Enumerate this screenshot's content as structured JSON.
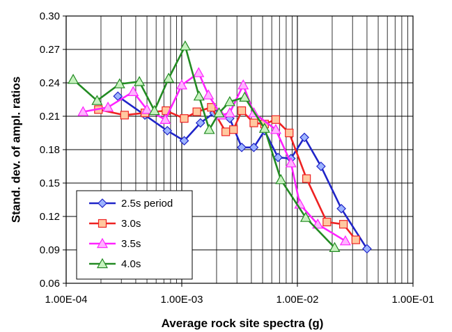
{
  "chart_data": {
    "type": "scatter",
    "title": "",
    "xlabel": "Average rock site spectra (g)",
    "ylabel": "Stand. dev. of ampl. ratios",
    "x_scale": "log",
    "xlim": [
      0.0001,
      0.1
    ],
    "ylim": [
      0.06,
      0.3
    ],
    "x_ticks": [
      0.0001,
      0.001,
      0.01,
      0.1
    ],
    "x_tick_labels": [
      "1.00E-04",
      "1.00E-03",
      "1.00E-02",
      "1.00E-01"
    ],
    "y_ticks": [
      0.06,
      0.09,
      0.12,
      0.15,
      0.18,
      0.21,
      0.24,
      0.27,
      0.3
    ],
    "y_tick_labels": [
      "0.06",
      "0.09",
      "0.12",
      "0.15",
      "0.18",
      "0.21",
      "0.24",
      "0.27",
      "0.30"
    ],
    "grid": true,
    "legend_position": "bottom-left",
    "series": [
      {
        "name": "2.5s period",
        "color": "#1f24c8",
        "marker": "diamond",
        "x": [
          0.00028,
          0.00048,
          0.00075,
          0.00105,
          0.00145,
          0.0019,
          0.0026,
          0.0033,
          0.0042,
          0.0052,
          0.0068,
          0.0088,
          0.0115,
          0.016,
          0.024,
          0.04
        ],
        "y": [
          0.228,
          0.211,
          0.197,
          0.188,
          0.204,
          0.213,
          0.208,
          0.182,
          0.182,
          0.197,
          0.173,
          0.172,
          0.191,
          0.165,
          0.127,
          0.091
        ]
      },
      {
        "name": "3.0s",
        "color": "#ee2222",
        "marker": "square",
        "x": [
          0.00019,
          0.00032,
          0.00048,
          0.00073,
          0.00105,
          0.00135,
          0.0018,
          0.0024,
          0.0028,
          0.0033,
          0.0042,
          0.0052,
          0.0065,
          0.0085,
          0.012,
          0.018,
          0.025,
          0.032
        ],
        "y": [
          0.216,
          0.211,
          0.213,
          0.215,
          0.208,
          0.214,
          0.218,
          0.196,
          0.198,
          0.215,
          0.204,
          0.203,
          0.207,
          0.195,
          0.154,
          0.115,
          0.113,
          0.099
        ]
      },
      {
        "name": "3.5s",
        "color": "#ff22ff",
        "marker": "triangle",
        "x": [
          0.00014,
          0.00023,
          0.00038,
          0.0005,
          0.00072,
          0.001,
          0.0014,
          0.0017,
          0.0022,
          0.0026,
          0.0034,
          0.0042,
          0.0065,
          0.0088,
          0.0105,
          0.015,
          0.026
        ],
        "y": [
          0.214,
          0.218,
          0.232,
          0.216,
          0.207,
          0.238,
          0.249,
          0.229,
          0.211,
          0.213,
          0.238,
          0.213,
          0.198,
          0.168,
          0.131,
          0.113,
          0.098
        ]
      },
      {
        "name": "4.0s",
        "color": "#228b22",
        "marker": "triangle",
        "x": [
          0.000115,
          0.000185,
          0.00029,
          0.00043,
          0.00058,
          0.00077,
          0.00107,
          0.00141,
          0.00173,
          0.0021,
          0.0026,
          0.0035,
          0.0052,
          0.0072,
          0.0118,
          0.021
        ],
        "y": [
          0.243,
          0.224,
          0.239,
          0.241,
          0.215,
          0.244,
          0.273,
          0.228,
          0.198,
          0.213,
          0.223,
          0.227,
          0.199,
          0.153,
          0.119,
          0.092
        ]
      }
    ]
  }
}
